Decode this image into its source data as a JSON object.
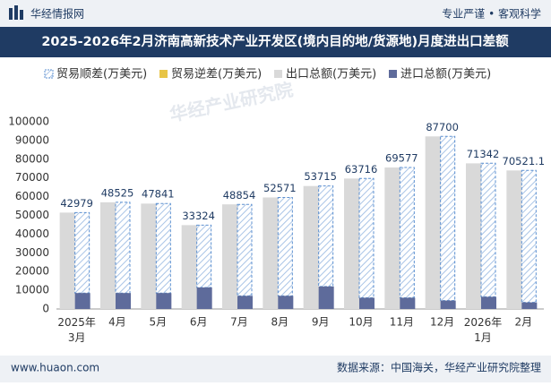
{
  "header": {
    "brand": "华经情报网",
    "slogan": "专业严谨 • 客观科学"
  },
  "footer": {
    "site": "www.huaon.com",
    "source": "数据来源：中国海关，华经产业研究院整理"
  },
  "watermark": "华经产业研究院",
  "chart_data": {
    "type": "bar",
    "title": "2025-2026年2月济南高新技术产业开发区(境内目的地/货源地)月度进出口差额",
    "categories": [
      "2025年\n3月",
      "4月",
      "5月",
      "6月",
      "7月",
      "8月",
      "9月",
      "10月",
      "11月",
      "12月",
      "2026年\n1月",
      "2月"
    ],
    "series": [
      {
        "name": "贸易顺差(万美元)",
        "color": "#5b8fd0",
        "role": "surplus",
        "values": [
          42979,
          48525,
          47841,
          33324,
          48854,
          52571,
          53715,
          63716,
          69577,
          87700,
          71342,
          70521.1
        ]
      },
      {
        "name": "贸易逆差(万美元)",
        "color": "#e8c547",
        "role": "deficit",
        "values": [
          null,
          null,
          null,
          null,
          null,
          null,
          null,
          null,
          null,
          null,
          null,
          null
        ]
      },
      {
        "name": "出口总额(万美元)",
        "color": "#d9d9d9",
        "role": "export",
        "values": [
          51500,
          57000,
          56300,
          44800,
          55900,
          59600,
          65700,
          69700,
          75600,
          92200,
          77800,
          74000
        ]
      },
      {
        "name": "进口总额(万美元)",
        "color": "#5e6b9b",
        "role": "import",
        "values": [
          8500,
          8500,
          8500,
          11500,
          7000,
          7000,
          12000,
          6000,
          6000,
          4500,
          6500,
          3500
        ]
      }
    ],
    "ylim": [
      0,
      100000
    ],
    "yticks": [
      0,
      10000,
      20000,
      30000,
      40000,
      50000,
      60000,
      70000,
      80000,
      90000,
      100000
    ],
    "grid": false
  }
}
